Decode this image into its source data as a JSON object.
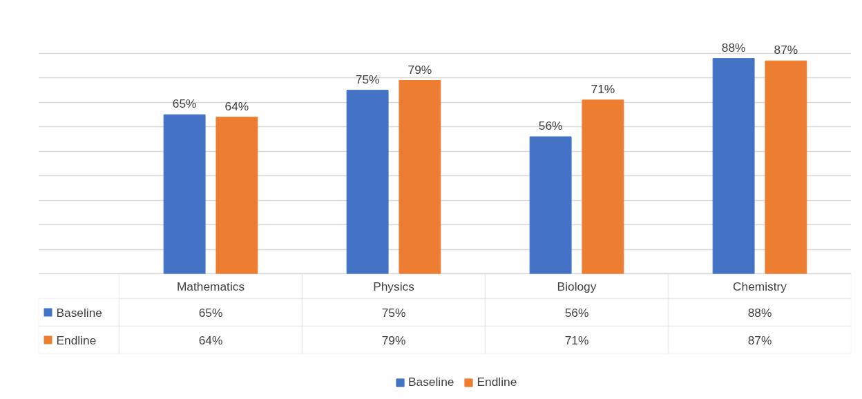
{
  "chart_data": {
    "type": "bar",
    "categories": [
      "Mathematics",
      "Physics",
      "Biology",
      "Chemistry"
    ],
    "series": [
      {
        "name": "Baseline",
        "color": "#4472c4",
        "values": [
          65,
          75,
          56,
          88
        ],
        "value_labels": [
          "65%",
          "75%",
          "56%",
          "88%"
        ]
      },
      {
        "name": "Endline",
        "color": "#ed7d31",
        "values": [
          64,
          79,
          71,
          87
        ],
        "value_labels": [
          "64%",
          "79%",
          "71%",
          "87%"
        ]
      }
    ],
    "grid": "y",
    "legend": "bottom",
    "tick_labels": "x"
  }
}
